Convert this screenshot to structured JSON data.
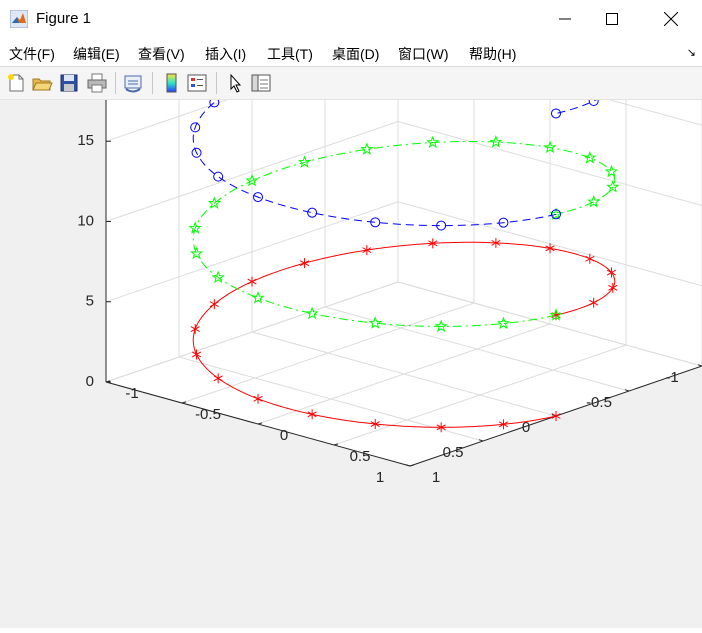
{
  "window": {
    "title": "Figure 1"
  },
  "menu": [
    {
      "label": "文件(F)"
    },
    {
      "label": "编辑(E)"
    },
    {
      "label": "查看(V)"
    },
    {
      "label": "插入(I)"
    },
    {
      "label": "工具(T)"
    },
    {
      "label": "桌面(D)"
    },
    {
      "label": "窗口(W)"
    },
    {
      "label": "帮助(H)"
    }
  ],
  "toolbar": {
    "icons": [
      "new-figure-icon",
      "open-file-icon",
      "save-icon",
      "print-icon",
      "link-plot-icon",
      "colorbar-icon",
      "legend-icon",
      "edit-pointer-icon",
      "property-inspector-icon"
    ]
  },
  "chart_data": {
    "type": "line",
    "subtype": "3d-helix",
    "title": "",
    "xlabel": "",
    "ylabel": "",
    "zlabel": "",
    "xlim": [
      -1,
      1
    ],
    "ylim": [
      -1,
      1
    ],
    "zlim": [
      0,
      18
    ],
    "x_ticks": [
      "-1",
      "-0.5",
      "0",
      "0.5",
      "1"
    ],
    "y_ticks": [
      "-1",
      "-0.5",
      "0",
      "0.5",
      "1"
    ],
    "z_ticks": [
      "0",
      "5",
      "10",
      "15"
    ],
    "grid": true,
    "series": [
      {
        "color": "#ff0000",
        "line": "solid",
        "marker": "*",
        "points": {
          "t_start": 0,
          "t_end": 6.2832,
          "count": 21,
          "x": "sin(t)",
          "y": "cos(t)",
          "z": "t"
        }
      },
      {
        "color": "#00ff00",
        "line": "dashdot",
        "marker": "pentagram",
        "points": {
          "t_start": 6.2832,
          "t_end": 12.5664,
          "count": 21,
          "x": "sin(t)",
          "y": "cos(t)",
          "z": "t"
        }
      },
      {
        "color": "#0000ff",
        "line": "dashed",
        "marker": "o",
        "points": {
          "t_start": 12.5664,
          "t_end": 18.8496,
          "count": 21,
          "x": "sin(t)",
          "y": "cos(t)",
          "z": "t"
        }
      }
    ]
  }
}
